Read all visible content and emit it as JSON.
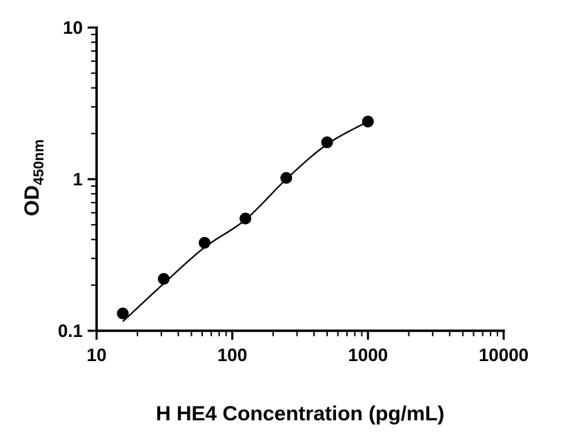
{
  "figure": {
    "background": "#ffffff"
  },
  "chart_data": {
    "type": "scatter",
    "title": "",
    "xlabel": "H HE4 Concentration (pg/mL)",
    "ylabel": "OD450nm",
    "ylabel_main": "OD",
    "ylabel_sub": "450nm",
    "x_scale": "log",
    "y_scale": "log",
    "xlim": [
      10,
      10000
    ],
    "ylim": [
      0.1,
      10
    ],
    "x_tick_labels": [
      "10",
      "100",
      "1000",
      "10000"
    ],
    "y_tick_labels": [
      "0.1",
      "1",
      "10"
    ],
    "grid": false,
    "legend": "none",
    "marker_color": "#000000",
    "line_color": "#000000",
    "points": {
      "x": [
        15.6,
        31.25,
        62.5,
        125,
        250,
        500,
        1000
      ],
      "y": [
        0.13,
        0.22,
        0.38,
        0.55,
        1.02,
        1.75,
        2.4
      ]
    },
    "fit_curve": {
      "x": [
        15.6,
        31.25,
        62.5,
        125,
        250,
        500,
        1000
      ],
      "y": [
        0.115,
        0.205,
        0.355,
        0.54,
        1.0,
        1.7,
        2.4
      ]
    }
  }
}
